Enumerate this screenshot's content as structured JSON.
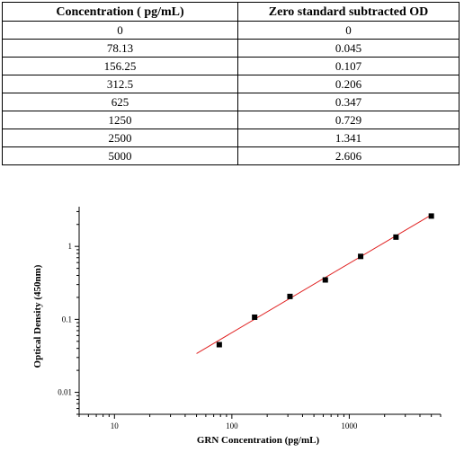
{
  "table": {
    "headers": [
      "Concentration ( pg/mL)",
      "Zero standard subtracted OD"
    ],
    "rows": [
      [
        "0",
        "0"
      ],
      [
        "78.13",
        "0.045"
      ],
      [
        "156.25",
        "0.107"
      ],
      [
        "312.5",
        "0.206"
      ],
      [
        "625",
        "0.347"
      ],
      [
        "1250",
        "0.729"
      ],
      [
        "2500",
        "1.341"
      ],
      [
        "5000",
        "2.606"
      ]
    ]
  },
  "chart_data": {
    "type": "scatter",
    "xlabel": "GRN Concentration (pg/mL)",
    "ylabel": "Optical Density (450nm)",
    "x_scale": "log",
    "y_scale": "log",
    "xlim": [
      5,
      6000
    ],
    "ylim": [
      0.005,
      3.5
    ],
    "x_ticks": [
      10,
      100,
      1000
    ],
    "x_tick_labels": [
      "10",
      "100",
      "1000"
    ],
    "y_ticks": [
      0.01,
      0.1,
      1
    ],
    "y_tick_labels": [
      "0.01",
      "0.1",
      "1"
    ],
    "grid": false,
    "series": [
      {
        "type": "scatter",
        "x": [
          78.13,
          156.25,
          312.5,
          625,
          1250,
          2500,
          5000
        ],
        "y": [
          0.045,
          0.107,
          0.206,
          0.347,
          0.729,
          1.341,
          2.606
        ],
        "color": "#000000"
      },
      {
        "type": "line",
        "x": [
          50,
          5000
        ],
        "y": [
          0.034,
          2.7
        ],
        "color": "#e02020"
      }
    ]
  }
}
